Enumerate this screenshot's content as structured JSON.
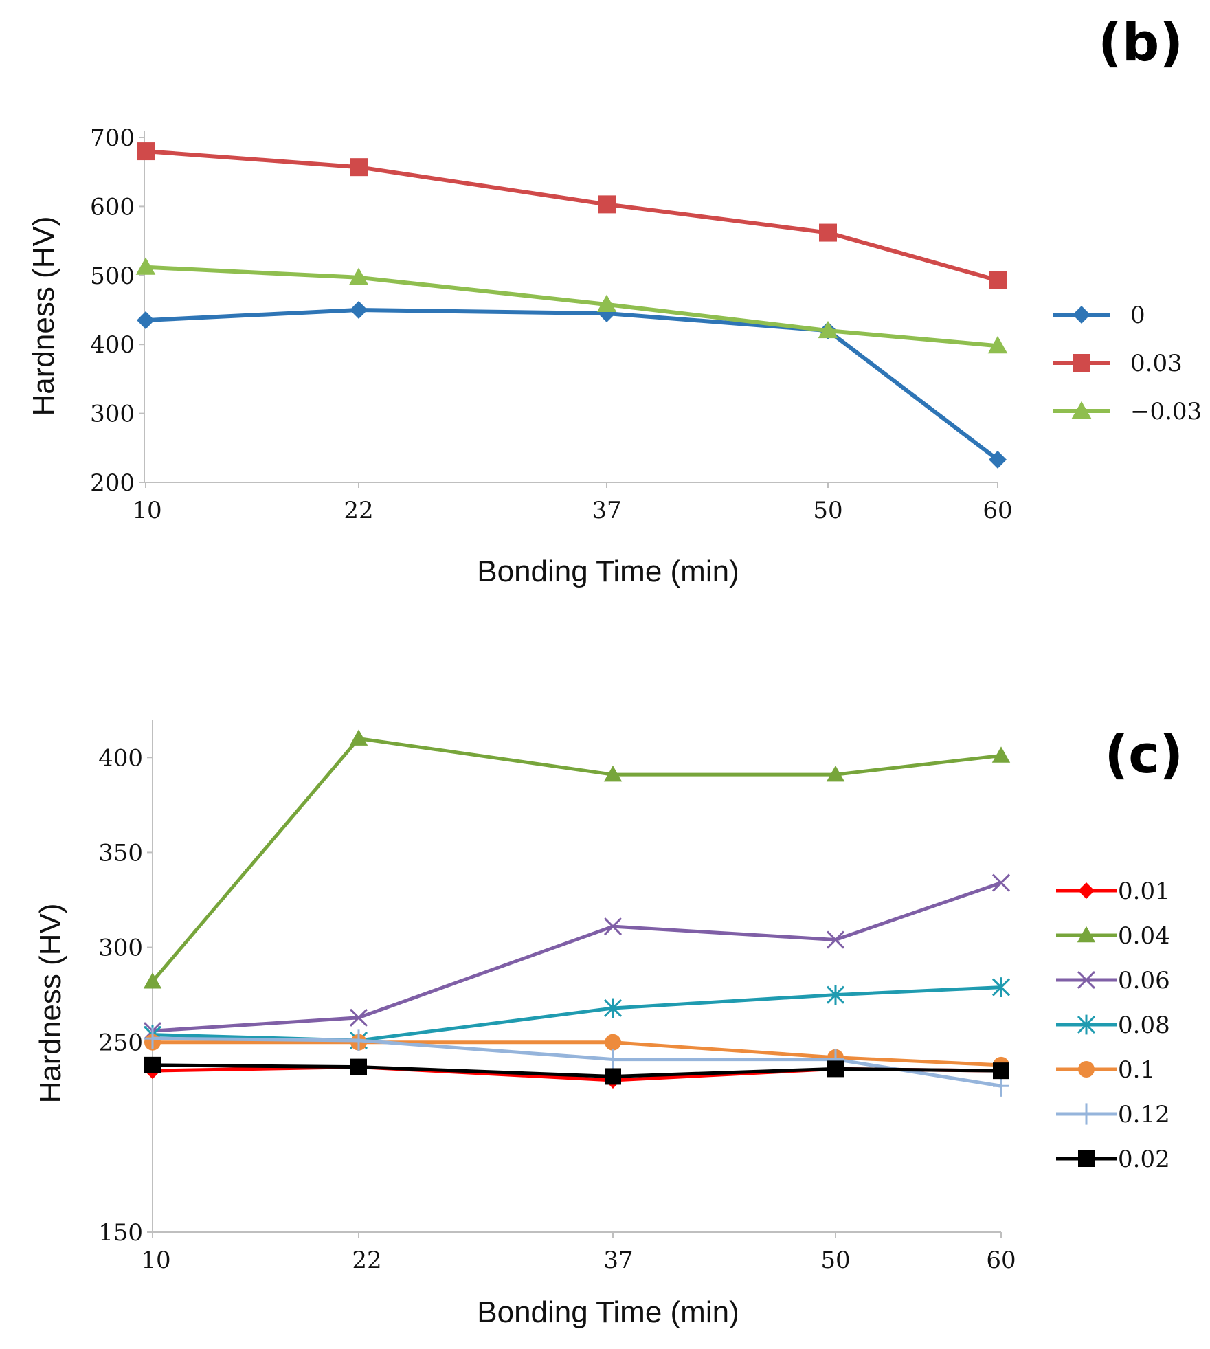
{
  "chart_data": [
    {
      "type": "line",
      "panel_label": "(b)",
      "x_categories": [
        "10",
        "22",
        "37",
        "50",
        "60"
      ],
      "x": [
        10,
        22,
        37,
        50,
        60
      ],
      "xlabel": "Bonding Time (min)",
      "ylabel": "Hardness (HV)",
      "ylim": [
        200,
        700
      ],
      "yticks": [
        "200",
        "300",
        "400",
        "500",
        "600",
        "700"
      ],
      "grid": false,
      "legend_position": "right",
      "series": [
        {
          "name": "0",
          "values": [
            435,
            450,
            445,
            420,
            233
          ],
          "color": "#2e75b6",
          "marker": "diamond"
        },
        {
          "name": "0.03",
          "values": [
            680,
            657,
            603,
            562,
            493
          ],
          "color": "#d04a4a",
          "marker": "square"
        },
        {
          "name": "−0.03",
          "values": [
            512,
            497,
            458,
            420,
            398
          ],
          "color": "#8fbe4f",
          "marker": "triangle"
        }
      ]
    },
    {
      "type": "line",
      "panel_label": "(c)",
      "x_categories": [
        "10",
        "22",
        "37",
        "50",
        "60"
      ],
      "x": [
        10,
        22,
        37,
        50,
        60
      ],
      "xlabel": "Bonding Time (min)",
      "ylabel": "Hardness (HV)",
      "ylim": [
        150,
        420
      ],
      "yticks": [
        "150",
        "250",
        "300",
        "350",
        "400"
      ],
      "ytick_values": [
        150,
        250,
        300,
        350,
        400
      ],
      "grid": false,
      "legend_position": "right",
      "series": [
        {
          "name": "0.01",
          "values": [
            235,
            237,
            230,
            236,
            235
          ],
          "color": "#ff0000",
          "marker": "diamond"
        },
        {
          "name": "0.04",
          "values": [
            282,
            410,
            391,
            391,
            401
          ],
          "color": "#77a53b",
          "marker": "triangle"
        },
        {
          "name": "0.06",
          "values": [
            256,
            263,
            311,
            304,
            334
          ],
          "color": "#7f5fa6",
          "marker": "x"
        },
        {
          "name": "0.08",
          "values": [
            254,
            251,
            268,
            275,
            279
          ],
          "color": "#1f9bb0",
          "marker": "star"
        },
        {
          "name": "0.1",
          "values": [
            250,
            250,
            250,
            242,
            238
          ],
          "color": "#ed8b3c",
          "marker": "circle"
        },
        {
          "name": "0.12",
          "values": [
            252,
            251,
            241,
            241,
            227
          ],
          "color": "#95b4db",
          "marker": "plus"
        },
        {
          "name": "0.02",
          "values": [
            238,
            237,
            232,
            236,
            235
          ],
          "color": "#000000",
          "marker": "square"
        }
      ]
    }
  ]
}
